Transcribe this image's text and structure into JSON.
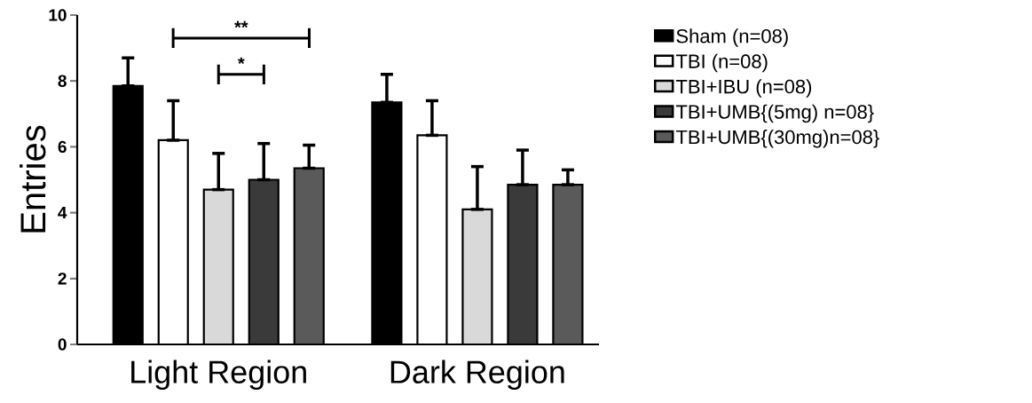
{
  "chart_data": {
    "type": "bar",
    "ylabel": "Entries",
    "categories": [
      "Light Region",
      "Dark Region"
    ],
    "series": [
      {
        "name": "Sham (n=08)",
        "color": "#000000",
        "values": [
          7.85,
          7.35
        ],
        "errors": [
          [
            7.85,
            8.7
          ],
          [
            7.35,
            8.2
          ]
        ]
      },
      {
        "name": "TBI (n=08)",
        "color": "#ffffff",
        "values": [
          6.2,
          6.35
        ],
        "errors": [
          [
            6.2,
            7.4
          ],
          [
            6.35,
            7.4
          ]
        ]
      },
      {
        "name": "TBI+IBU (n=08)",
        "color": "#d9d9d9",
        "values": [
          4.7,
          4.1
        ],
        "errors": [
          [
            4.7,
            5.8
          ],
          [
            4.1,
            5.4
          ]
        ]
      },
      {
        "name": "TBI+UMB{(5mg) n=08}",
        "color": "#3a3a3a",
        "values": [
          5.0,
          4.85
        ],
        "errors": [
          [
            5.0,
            6.1
          ],
          [
            4.85,
            5.9
          ]
        ]
      },
      {
        "name": "TBI+UMB{(30mg)n=08}",
        "color": "#5a5a5a",
        "values": [
          5.35,
          4.85
        ],
        "errors": [
          [
            5.35,
            6.05
          ],
          [
            4.85,
            5.3
          ]
        ]
      }
    ],
    "ylim": [
      0,
      10
    ],
    "yticks": [
      0,
      2,
      4,
      6,
      8,
      10
    ],
    "legend": "right",
    "grid": false,
    "annotations": [
      "**",
      "*"
    ]
  }
}
